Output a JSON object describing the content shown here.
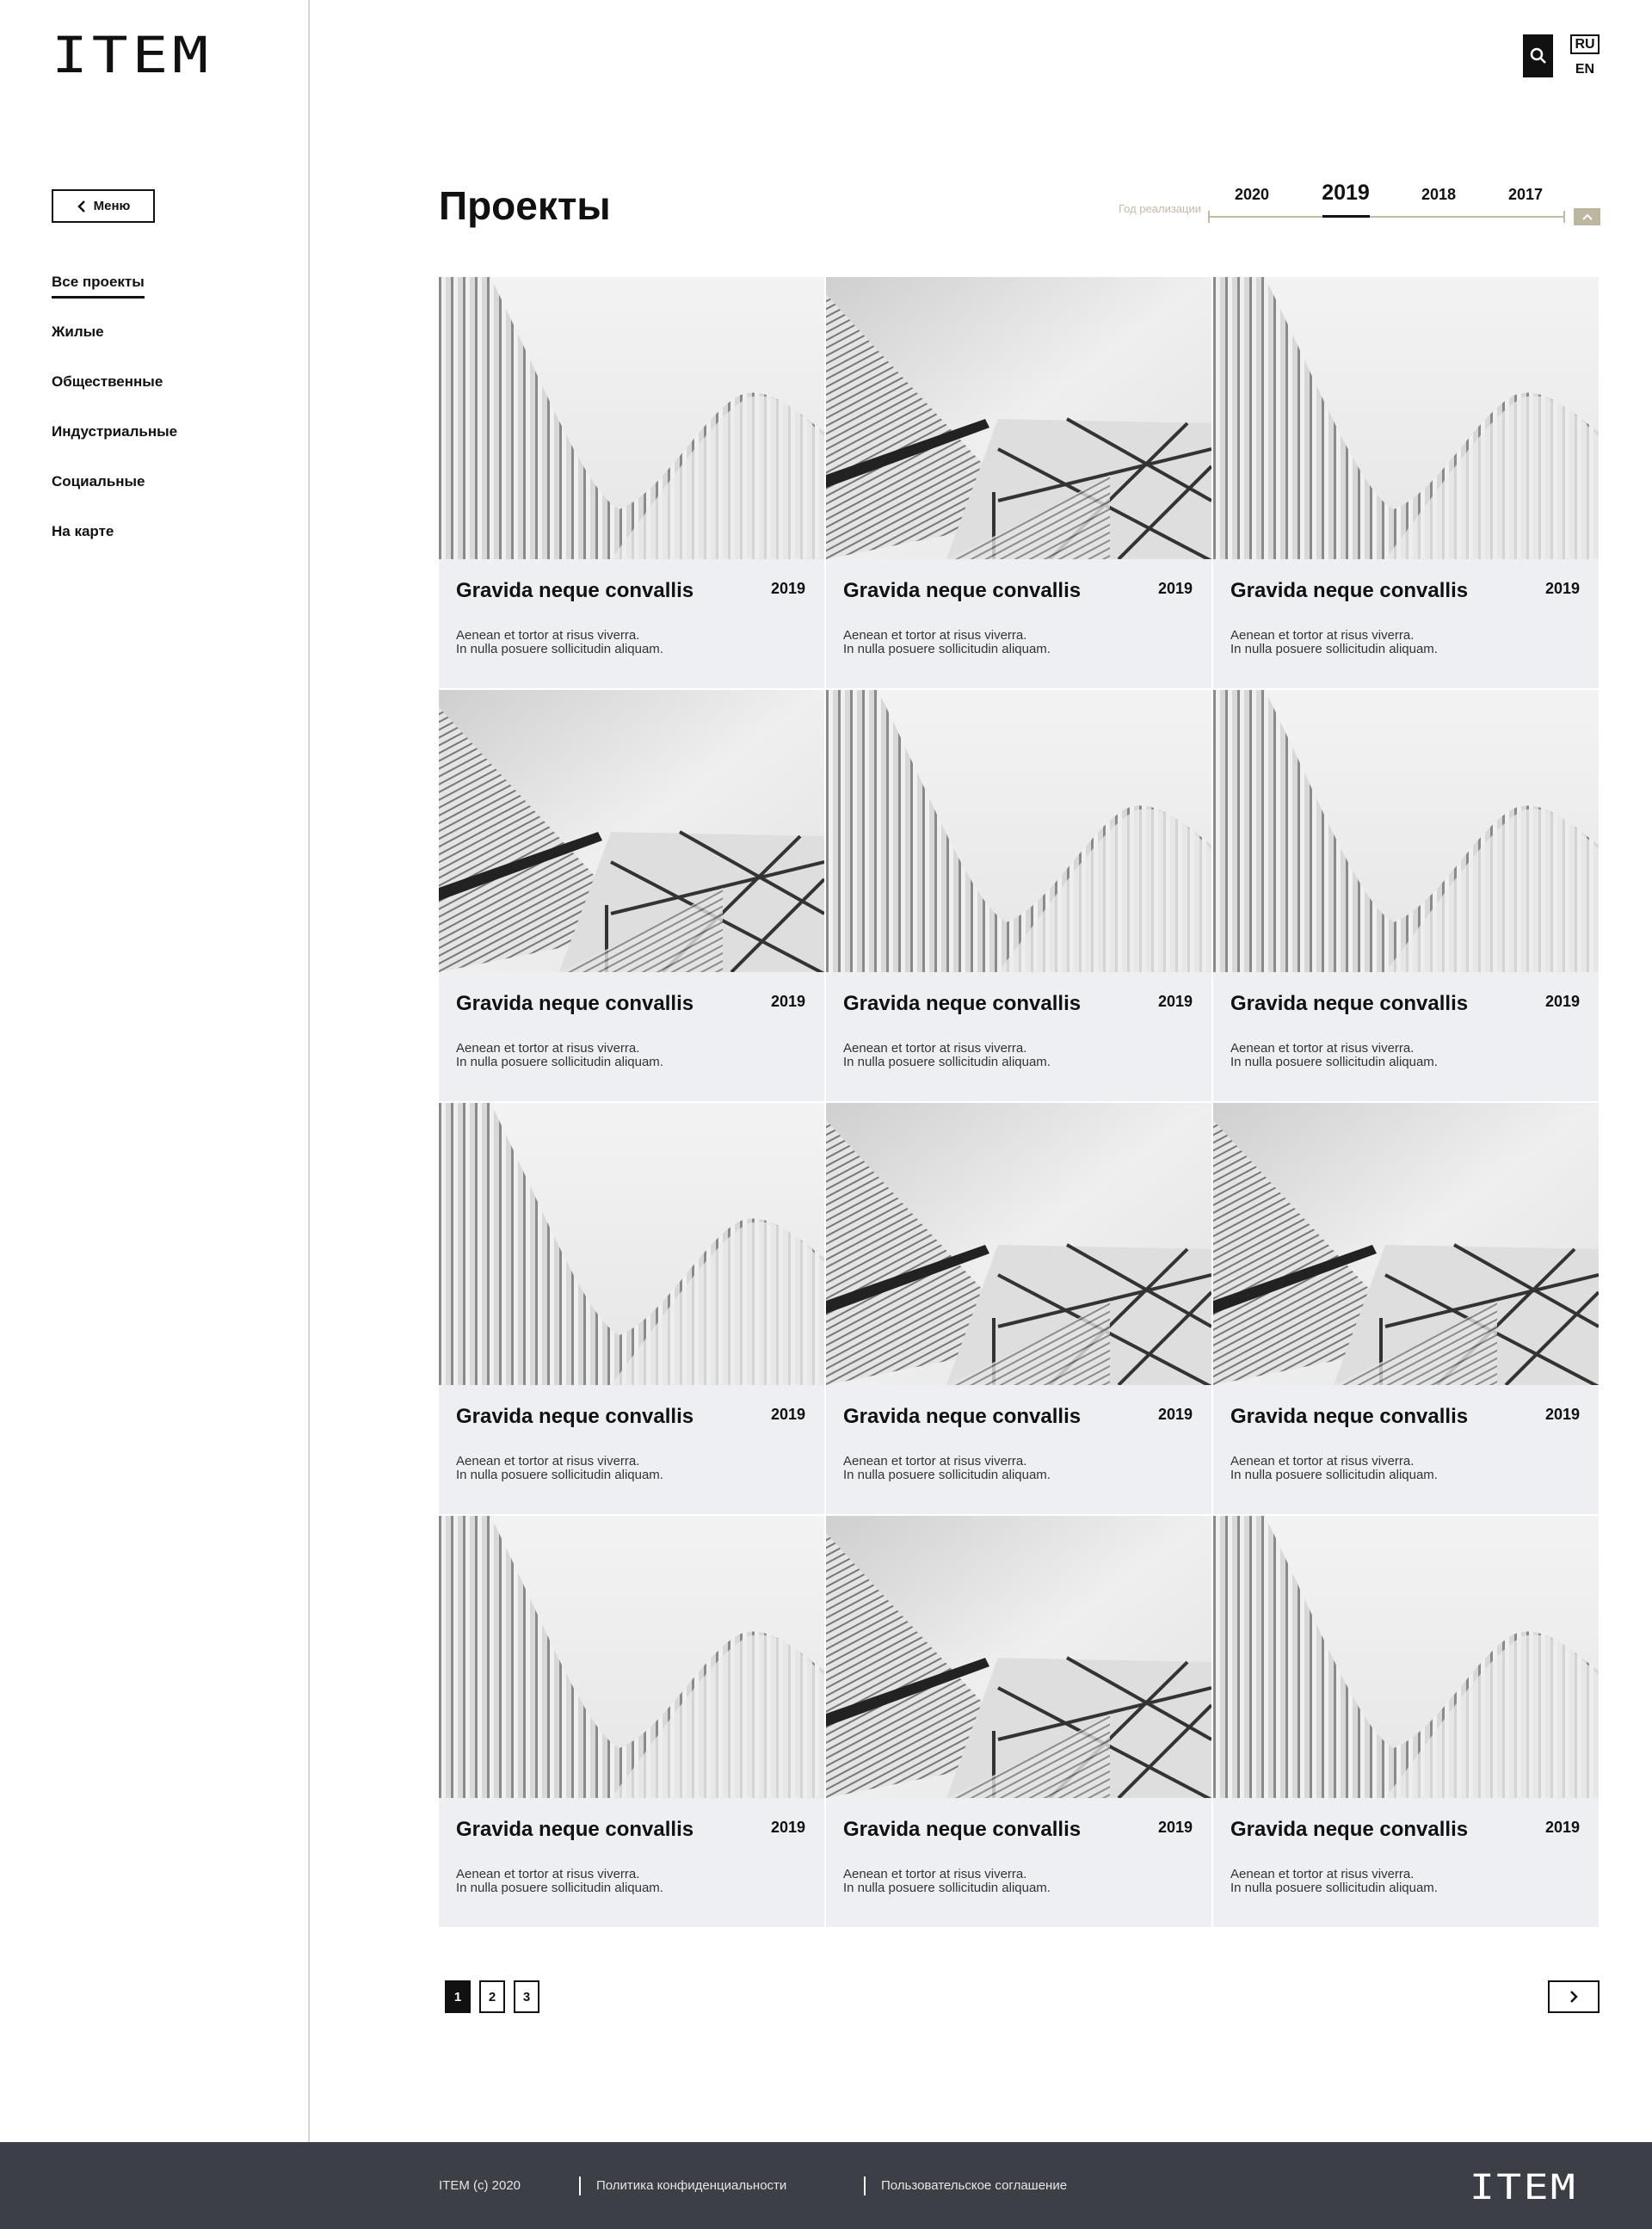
{
  "header": {
    "logo": "ITEM",
    "search_icon": "search-icon",
    "lang_active": "RU",
    "lang_other": "EN"
  },
  "sidebar": {
    "menu_label": "Меню",
    "items": [
      {
        "label": "Все проекты",
        "active": true
      },
      {
        "label": "Жилые"
      },
      {
        "label": "Общественные"
      },
      {
        "label": "Индустриальные"
      },
      {
        "label": "Социальные"
      },
      {
        "label": "На карте"
      }
    ]
  },
  "main": {
    "title": "Проекты",
    "year_filter": {
      "label": "Год реализации",
      "years": [
        "2020",
        "2019",
        "2018",
        "2017"
      ],
      "selected": "2019",
      "accent": "#bdb69e"
    },
    "cards": [
      {
        "title": "Gravida neque convallis",
        "year": "2019",
        "line1": "Aenean et tortor at risus viverra.",
        "line2": "In nulla posuere sollicitudin aliquam.",
        "image": "ribs"
      },
      {
        "title": "Gravida neque convallis",
        "year": "2019",
        "line1": "Aenean et tortor at risus viverra.",
        "line2": "In nulla posuere sollicitudin aliquam.",
        "image": "glass"
      },
      {
        "title": "Gravida neque convallis",
        "year": "2019",
        "line1": "Aenean et tortor at risus viverra.",
        "line2": "In nulla posuere sollicitudin aliquam.",
        "image": "ribs"
      },
      {
        "title": "Gravida neque convallis",
        "year": "2019",
        "line1": "Aenean et tortor at risus viverra.",
        "line2": "In nulla posuere sollicitudin aliquam.",
        "image": "glass"
      },
      {
        "title": "Gravida neque convallis",
        "year": "2019",
        "line1": "Aenean et tortor at risus viverra.",
        "line2": "In nulla posuere sollicitudin aliquam.",
        "image": "ribs"
      },
      {
        "title": "Gravida neque convallis",
        "year": "2019",
        "line1": "Aenean et tortor at risus viverra.",
        "line2": "In nulla posuere sollicitudin aliquam.",
        "image": "ribs"
      },
      {
        "title": "Gravida neque convallis",
        "year": "2019",
        "line1": "Aenean et tortor at risus viverra.",
        "line2": "In nulla posuere sollicitudin aliquam.",
        "image": "ribs"
      },
      {
        "title": "Gravida neque convallis",
        "year": "2019",
        "line1": "Aenean et tortor at risus viverra.",
        "line2": "In nulla posuere sollicitudin aliquam.",
        "image": "glass"
      },
      {
        "title": "Gravida neque convallis",
        "year": "2019",
        "line1": "Aenean et tortor at risus viverra.",
        "line2": "In nulla posuere sollicitudin aliquam.",
        "image": "glass"
      },
      {
        "title": "Gravida neque convallis",
        "year": "2019",
        "line1": "Aenean et tortor at risus viverra.",
        "line2": "In nulla posuere sollicitudin aliquam.",
        "image": "ribs"
      },
      {
        "title": "Gravida neque convallis",
        "year": "2019",
        "line1": "Aenean et tortor at risus viverra.",
        "line2": "In nulla posuere sollicitudin aliquam.",
        "image": "glass"
      },
      {
        "title": "Gravida neque convallis",
        "year": "2019",
        "line1": "Aenean et tortor at risus viverra.",
        "line2": "In nulla posuere sollicitudin aliquam.",
        "image": "ribs"
      }
    ],
    "pagination": {
      "pages": [
        "1",
        "2",
        "3"
      ],
      "current": "1",
      "next_icon": "chevron-right-icon"
    }
  },
  "footer": {
    "copyright": "ITEM (c) 2020",
    "privacy": "Политика конфиденциальности",
    "terms": "Пользовательское соглашение",
    "logo": "ITEM",
    "bg": "#3c3f46"
  }
}
